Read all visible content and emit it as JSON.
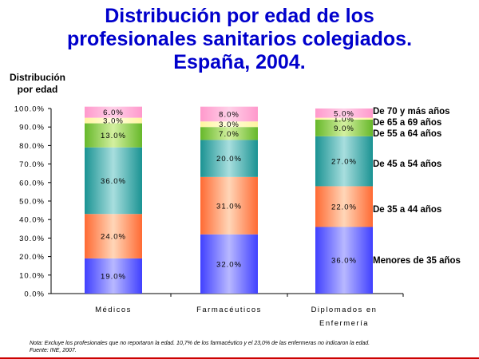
{
  "title": [
    "Distribución por edad de los",
    "profesionales sanitarios colegiados.",
    "España, 2004."
  ],
  "ylabel": [
    "Distribución",
    "por edad"
  ],
  "note": [
    "Nota: Excluye los profesionales que no reportaron la edad. 10,7% de los farmacéutico y el 23,0% de las enfermeras no indicaron la edad.",
    "Fuente: INE, 2007."
  ],
  "chart_data": {
    "type": "bar",
    "stacked": true,
    "categories": [
      "Médicos",
      "Farmacéuticos",
      "Diplomados en Enfermería"
    ],
    "category_lines": [
      [
        "Médicos"
      ],
      [
        "Farmacéuticos"
      ],
      [
        "Diplomados en",
        "Enfermería"
      ]
    ],
    "yticks": [
      "0.0%",
      "10.0%",
      "20.0%",
      "30.0%",
      "40.0%",
      "50.0%",
      "60.0%",
      "70.0%",
      "80.0%",
      "90.0%",
      "100.0%"
    ],
    "ylim": [
      0,
      100
    ],
    "series": [
      {
        "name": "Menores de 35 años",
        "values": [
          19.0,
          32.0,
          36.0
        ],
        "labels": [
          "19.0%",
          "32.0%",
          "36.0%"
        ],
        "color": "#4040ff",
        "light": "#b8b8ff"
      },
      {
        "name": "De 35 a 44 años",
        "values": [
          24.0,
          31.0,
          22.0
        ],
        "labels": [
          "24.0%",
          "31.0%",
          "22.0%"
        ],
        "color": "#ff6a33",
        "light": "#ffd6b8"
      },
      {
        "name": "De 45 a 54 años",
        "values": [
          36.0,
          20.0,
          27.0
        ],
        "labels": [
          "36.0%",
          "20.0%",
          "27.0%"
        ],
        "color": "#1a9393",
        "light": "#a8dede"
      },
      {
        "name": "De 55 a 64 años",
        "values": [
          13.0,
          7.0,
          9.0
        ],
        "labels": [
          "13.0%",
          "7.0%",
          "9.0%"
        ],
        "color": "#66b82a",
        "light": "#d4f0a0"
      },
      {
        "name": "De 65 a 69 años",
        "values": [
          3.0,
          3.0,
          1.0
        ],
        "labels": [
          "3.0%",
          "3.0%",
          "1.0%"
        ],
        "color": "#fff4a0",
        "light": "#ffffe0"
      },
      {
        "name": "De 70 y más años",
        "values": [
          6.0,
          8.0,
          5.0
        ],
        "labels": [
          "6.0%",
          "8.0%",
          "5.0%"
        ],
        "color": "#ff99cc",
        "light": "#ffd0e8"
      }
    ]
  }
}
